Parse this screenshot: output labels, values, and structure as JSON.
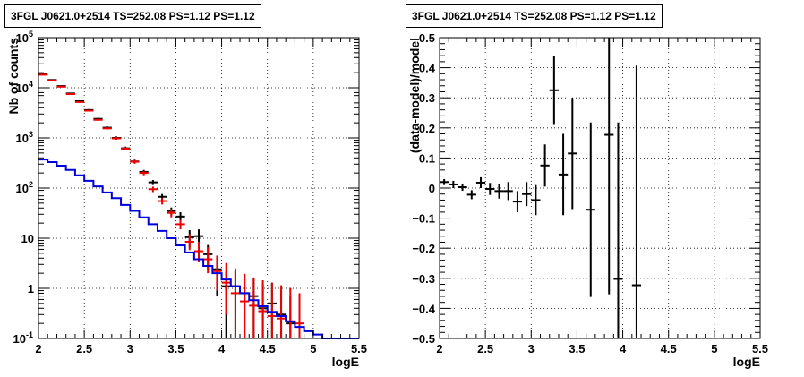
{
  "chart_data": [
    {
      "type": "line",
      "title": "3FGL J0621.0+2514 TS=252.08 PS=1.12 PS=1.12",
      "xlabel": "logE",
      "ylabel": "Nb of counts",
      "xlim": [
        2,
        5.5
      ],
      "ylim": [
        0.1,
        100000
      ],
      "yscale": "log",
      "grid": true,
      "xticks": [
        "2",
        "2.5",
        "3",
        "3.5",
        "4",
        "4.5",
        "5",
        "5.5"
      ],
      "yticks": [
        "10^-1",
        "1",
        "10",
        "10^2",
        "10^3",
        "10^4",
        "10^5"
      ],
      "series": [
        {
          "color": "#000000",
          "style": "errorbar",
          "x": [
            2.05,
            2.15,
            2.25,
            2.35,
            2.45,
            2.55,
            2.65,
            2.75,
            2.85,
            2.95,
            3.05,
            3.15,
            3.25,
            3.35,
            3.45,
            3.55,
            3.65,
            3.75,
            3.85,
            3.95,
            4.05,
            4.15,
            4.25,
            4.35,
            4.45,
            4.55,
            4.65,
            4.75
          ],
          "y": [
            18500,
            14300,
            10800,
            7700,
            5400,
            3600,
            2400,
            1600,
            1000,
            620,
            340,
            210,
            130,
            67,
            35,
            27,
            10.5,
            11,
            4.8,
            2.4,
            1.1,
            1.1,
            0.8,
            0.7,
            0.4,
            0.5,
            0.3,
            0.2
          ],
          "err_low": [
            400,
            350,
            300,
            250,
            200,
            150,
            120,
            100,
            70,
            50,
            30,
            20,
            15,
            9,
            6,
            6,
            4,
            4,
            2.5,
            1.7,
            1.0,
            1.0,
            0.8,
            0.7,
            0.4,
            0.5,
            0.3,
            0.2
          ],
          "err_high": [
            400,
            350,
            300,
            250,
            200,
            150,
            120,
            100,
            70,
            50,
            30,
            20,
            15,
            9,
            6,
            6,
            4,
            4,
            2.5,
            1.7,
            1.1,
            1.1,
            1.0,
            0.9,
            0.8,
            0.8,
            0.6,
            0.5
          ]
        },
        {
          "color": "#ee0000",
          "style": "errorbar",
          "x": [
            2.05,
            2.15,
            2.25,
            2.35,
            2.45,
            2.55,
            2.65,
            2.75,
            2.85,
            2.95,
            3.05,
            3.15,
            3.25,
            3.35,
            3.45,
            3.55,
            3.65,
            3.75,
            3.85,
            3.95,
            4.05,
            4.15,
            4.25,
            4.35,
            4.45,
            4.55,
            4.65,
            4.75,
            4.85
          ],
          "y": [
            18200,
            14000,
            10500,
            7500,
            5200,
            3500,
            2300,
            1550,
            980,
            610,
            335,
            200,
            95,
            55,
            32,
            19,
            8.5,
            5.5,
            3.8,
            2.2,
            1.3,
            0.8,
            0.55,
            0.45,
            0.35,
            0.28,
            0.25,
            0.22,
            0.2
          ],
          "err_low": [
            300,
            250,
            200,
            180,
            150,
            120,
            100,
            80,
            60,
            45,
            30,
            20,
            12,
            8,
            6,
            4,
            2.7,
            2.2,
            1.8,
            1.3,
            1.0,
            0.7,
            0.45,
            0.37,
            0.3,
            0.25,
            0.22,
            0.2,
            0.18
          ],
          "err_high": [
            300,
            250,
            200,
            180,
            150,
            120,
            100,
            80,
            60,
            45,
            30,
            20,
            12,
            8,
            6,
            4,
            3.5,
            3.0,
            2.8,
            2.3,
            1.9,
            1.7,
            1.4,
            1.2,
            1.1,
            1.0,
            0.9,
            0.8,
            0.6
          ]
        },
        {
          "color": "#0000dd",
          "style": "step",
          "x": [
            2.0,
            2.1,
            2.2,
            2.3,
            2.4,
            2.5,
            2.6,
            2.7,
            2.8,
            2.9,
            3.0,
            3.1,
            3.2,
            3.3,
            3.4,
            3.5,
            3.6,
            3.7,
            3.8,
            3.9,
            4.0,
            4.1,
            4.2,
            4.3,
            4.4,
            4.5,
            4.6,
            4.7,
            4.8,
            4.9,
            5.0,
            5.1,
            5.2,
            5.3,
            5.4
          ],
          "y": [
            370,
            330,
            280,
            230,
            180,
            140,
            108,
            82,
            63,
            46,
            35,
            26,
            19,
            14,
            10,
            7.2,
            5.2,
            3.8,
            2.8,
            2.0,
            1.5,
            1.1,
            0.8,
            0.58,
            0.44,
            0.34,
            0.28,
            0.22,
            0.17,
            0.14,
            0.12,
            0.1,
            0.1,
            0.1,
            0.1
          ]
        }
      ]
    },
    {
      "type": "scatter",
      "title": "3FGL J0621.0+2514 TS=252.08 PS=1.12 PS=1.12",
      "xlabel": "logE",
      "ylabel": "(data-model)/model",
      "xlim": [
        2,
        5.5
      ],
      "ylim": [
        -0.5,
        0.5
      ],
      "grid": true,
      "xticks": [
        "2",
        "2.5",
        "3",
        "3.5",
        "4",
        "4.5",
        "5",
        "5.5"
      ],
      "yticks": [
        "−0.5",
        "−0.4",
        "−0.3",
        "−0.2",
        "−0.1",
        "0",
        "0.1",
        "0.2",
        "0.3",
        "0.4",
        "0.5"
      ],
      "series": [
        {
          "color": "#000000",
          "style": "errorbar",
          "x": [
            2.05,
            2.15,
            2.25,
            2.35,
            2.45,
            2.55,
            2.65,
            2.75,
            2.85,
            2.95,
            3.05,
            3.15,
            3.25,
            3.35,
            3.45,
            3.65,
            3.85,
            3.95,
            4.15
          ],
          "y": [
            0.02,
            0.012,
            0.003,
            -0.022,
            0.018,
            -0.003,
            -0.01,
            -0.01,
            -0.045,
            -0.02,
            -0.04,
            0.075,
            0.325,
            0.045,
            0.115,
            -0.072,
            0.177,
            -0.302,
            -0.323
          ],
          "err": [
            0.01,
            0.012,
            0.012,
            0.015,
            0.018,
            0.02,
            0.025,
            0.03,
            0.035,
            0.04,
            0.05,
            0.07,
            0.115,
            0.135,
            0.185,
            0.29,
            0.53,
            0.52,
            0.73
          ]
        }
      ]
    }
  ]
}
